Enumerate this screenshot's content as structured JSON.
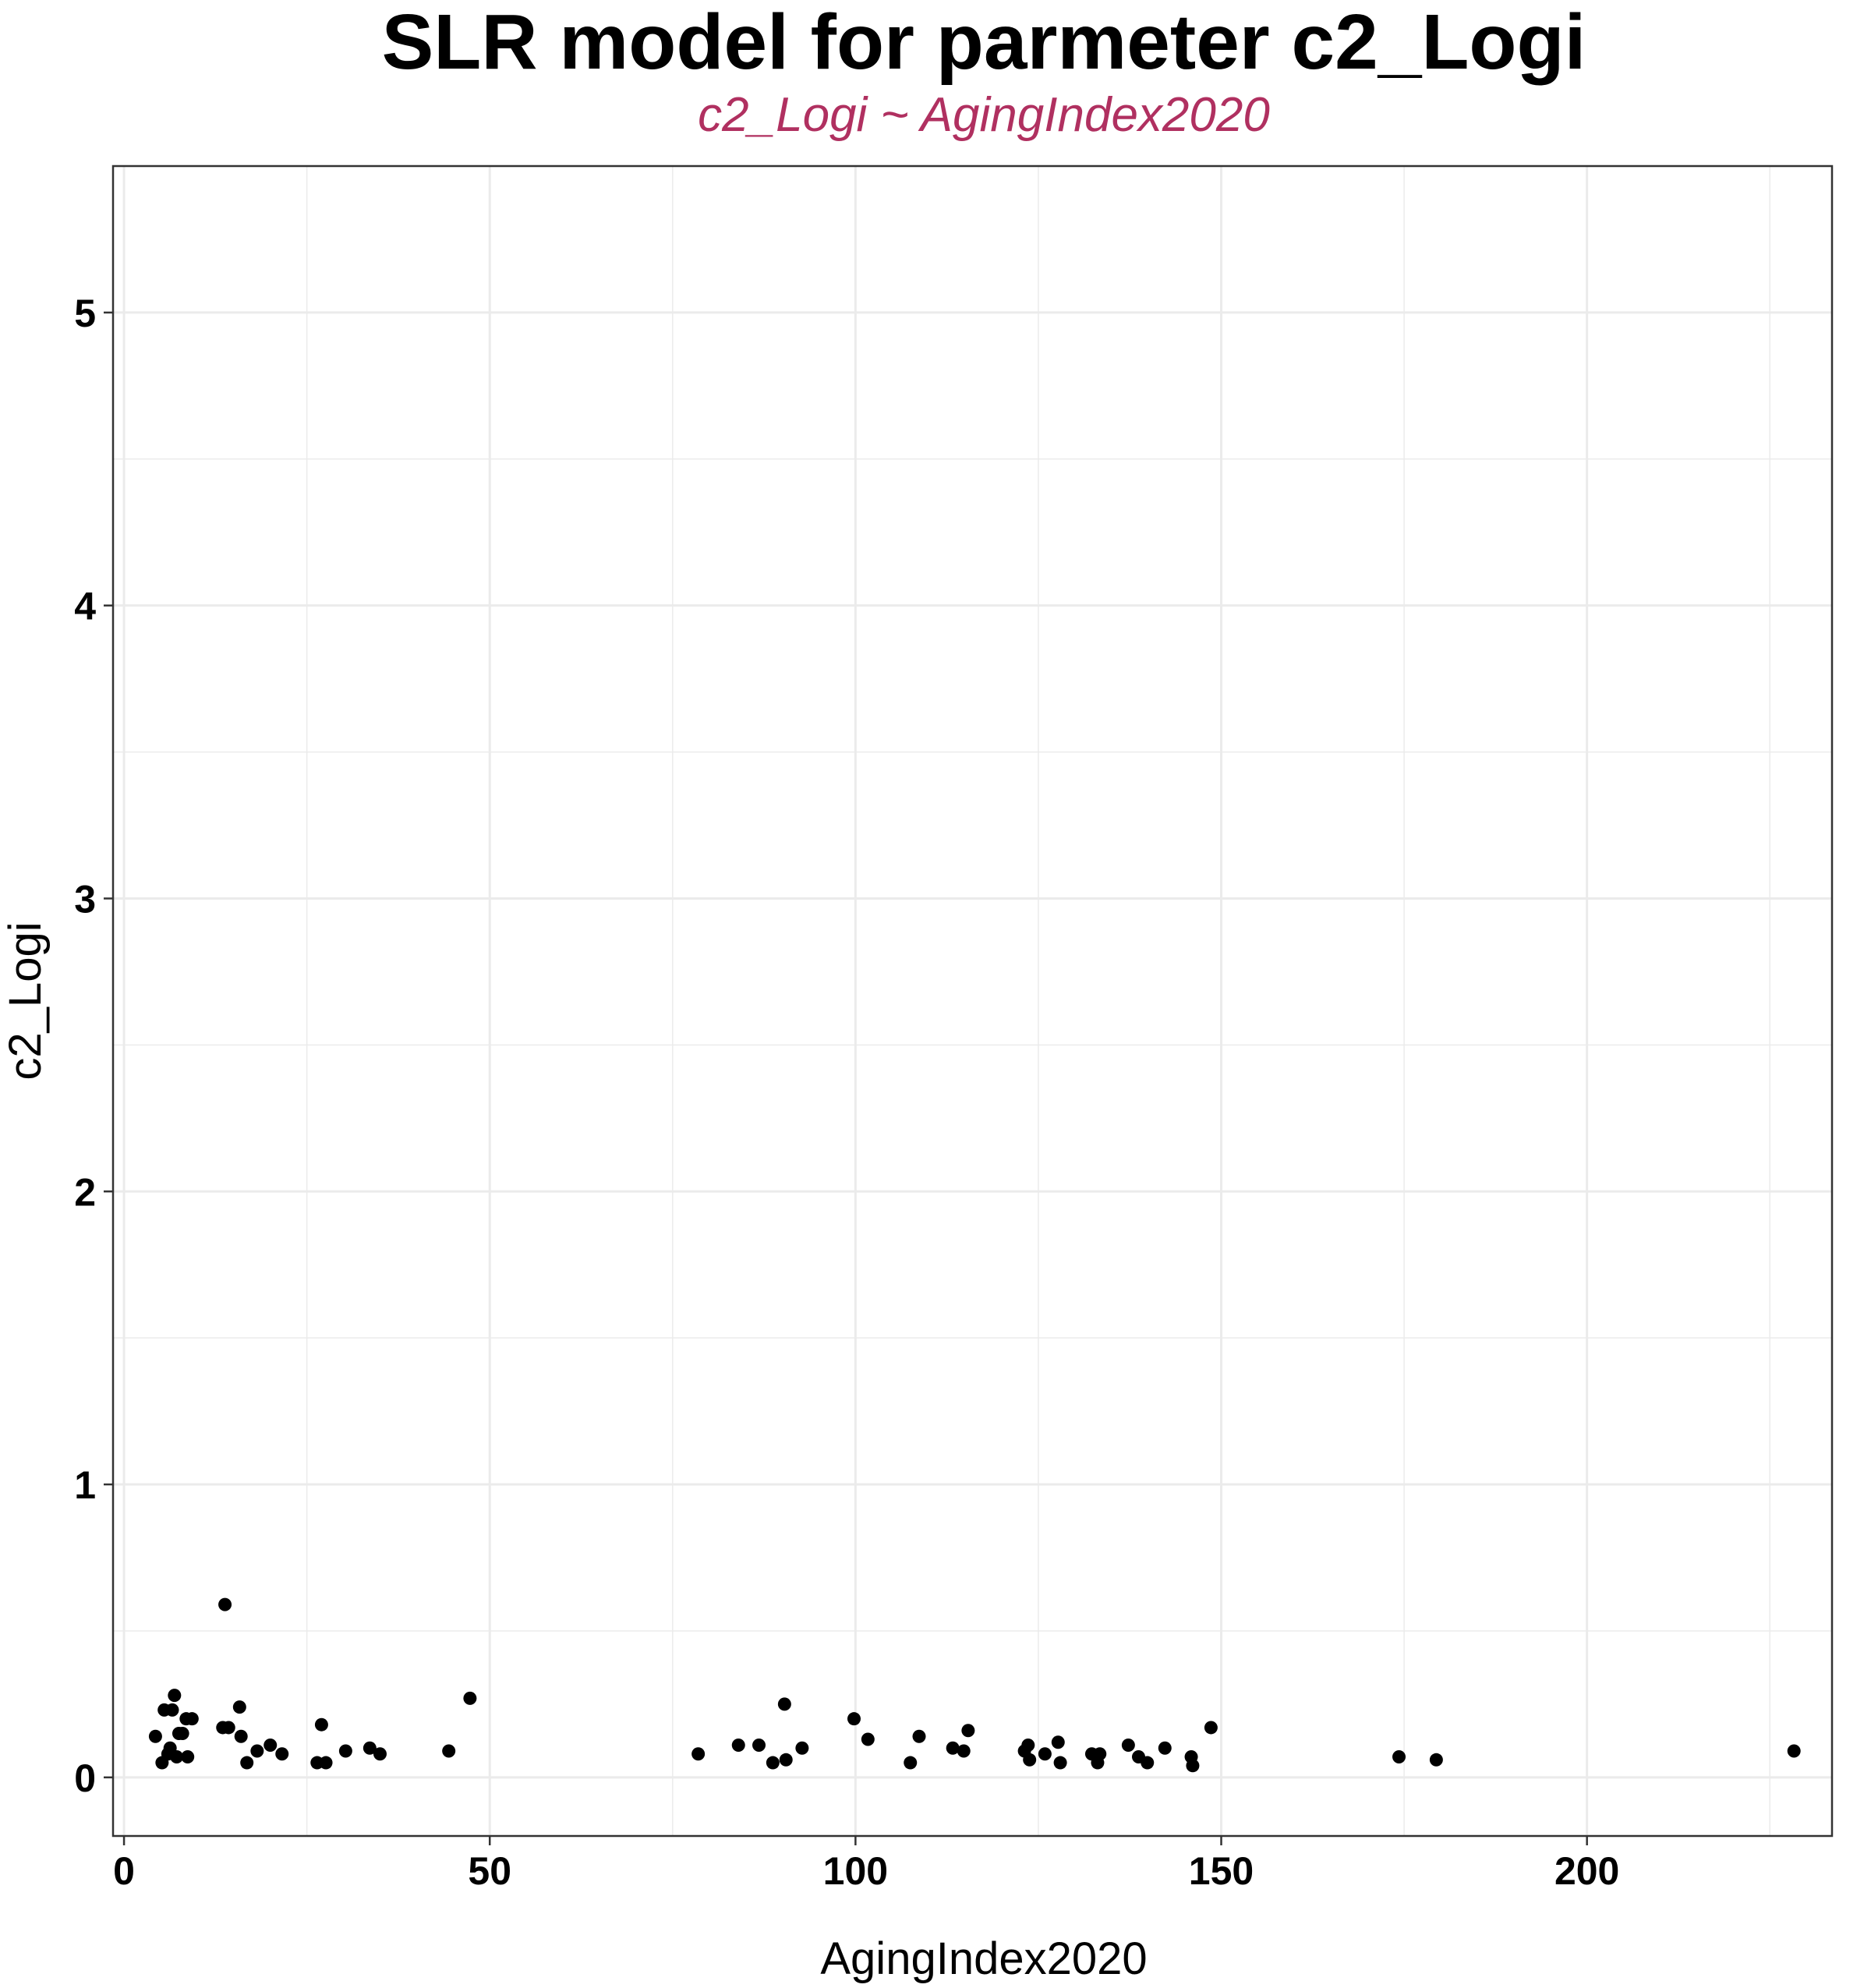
{
  "colors": {
    "subtitle": "#b03060",
    "points": "#000000",
    "grid": "#ebebeb",
    "panel_border": "#333333"
  },
  "chart_data": {
    "type": "scatter",
    "title": "SLR model for parmeter c2_Logi",
    "subtitle": "c2_Logi ~ AgingIndex2020",
    "xlabel": "AgingIndex2020",
    "ylabel": "c2_Logi",
    "xlim": [
      -1.5,
      233.5
    ],
    "ylim": [
      -0.2,
      5.5
    ],
    "xticks": [
      0,
      50,
      100,
      150,
      200
    ],
    "yticks": [
      0,
      1,
      2,
      3,
      4,
      5
    ],
    "xtick_labels": [
      "0",
      "50",
      "100",
      "150",
      "200"
    ],
    "ytick_labels": [
      "0",
      "1",
      "2",
      "3",
      "4",
      "5"
    ],
    "grid": true,
    "series": [
      {
        "points": [
          [
            4.3,
            0.14
          ],
          [
            5.2,
            0.05
          ],
          [
            5.5,
            0.23
          ],
          [
            6.0,
            0.08
          ],
          [
            6.3,
            0.1
          ],
          [
            6.6,
            0.23
          ],
          [
            6.9,
            0.28
          ],
          [
            7.2,
            0.07
          ],
          [
            7.5,
            0.15
          ],
          [
            8.0,
            0.15
          ],
          [
            8.5,
            0.2
          ],
          [
            8.7,
            0.07
          ],
          [
            9.3,
            0.2
          ],
          [
            13.5,
            0.17
          ],
          [
            13.8,
            0.59
          ],
          [
            14.3,
            0.17
          ],
          [
            15.8,
            0.24
          ],
          [
            16.0,
            0.14
          ],
          [
            16.8,
            0.05
          ],
          [
            18.2,
            0.09
          ],
          [
            20.0,
            0.11
          ],
          [
            21.6,
            0.08
          ],
          [
            26.4,
            0.05
          ],
          [
            27.0,
            0.18
          ],
          [
            27.6,
            0.05
          ],
          [
            30.3,
            0.09
          ],
          [
            33.6,
            0.1
          ],
          [
            35.0,
            0.08
          ],
          [
            44.4,
            0.09
          ],
          [
            47.3,
            0.27
          ],
          [
            78.5,
            0.08
          ],
          [
            84.0,
            0.11
          ],
          [
            86.8,
            0.11
          ],
          [
            88.7,
            0.05
          ],
          [
            90.3,
            0.25
          ],
          [
            90.5,
            0.06
          ],
          [
            92.7,
            0.1
          ],
          [
            99.8,
            0.2
          ],
          [
            101.7,
            0.13
          ],
          [
            107.5,
            0.05
          ],
          [
            108.7,
            0.14
          ],
          [
            113.3,
            0.1
          ],
          [
            114.8,
            0.09
          ],
          [
            115.4,
            0.16
          ],
          [
            123.1,
            0.09
          ],
          [
            123.6,
            0.11
          ],
          [
            123.8,
            0.06
          ],
          [
            125.9,
            0.08
          ],
          [
            127.7,
            0.12
          ],
          [
            128.0,
            0.05
          ],
          [
            132.3,
            0.08
          ],
          [
            133.1,
            0.05
          ],
          [
            133.4,
            0.08
          ],
          [
            137.3,
            0.11
          ],
          [
            138.7,
            0.07
          ],
          [
            139.9,
            0.05
          ],
          [
            142.3,
            0.1
          ],
          [
            145.9,
            0.07
          ],
          [
            146.1,
            0.04
          ],
          [
            148.6,
            0.17
          ],
          [
            174.3,
            0.07
          ],
          [
            179.4,
            0.06
          ],
          [
            228.3,
            0.09
          ]
        ]
      }
    ]
  }
}
